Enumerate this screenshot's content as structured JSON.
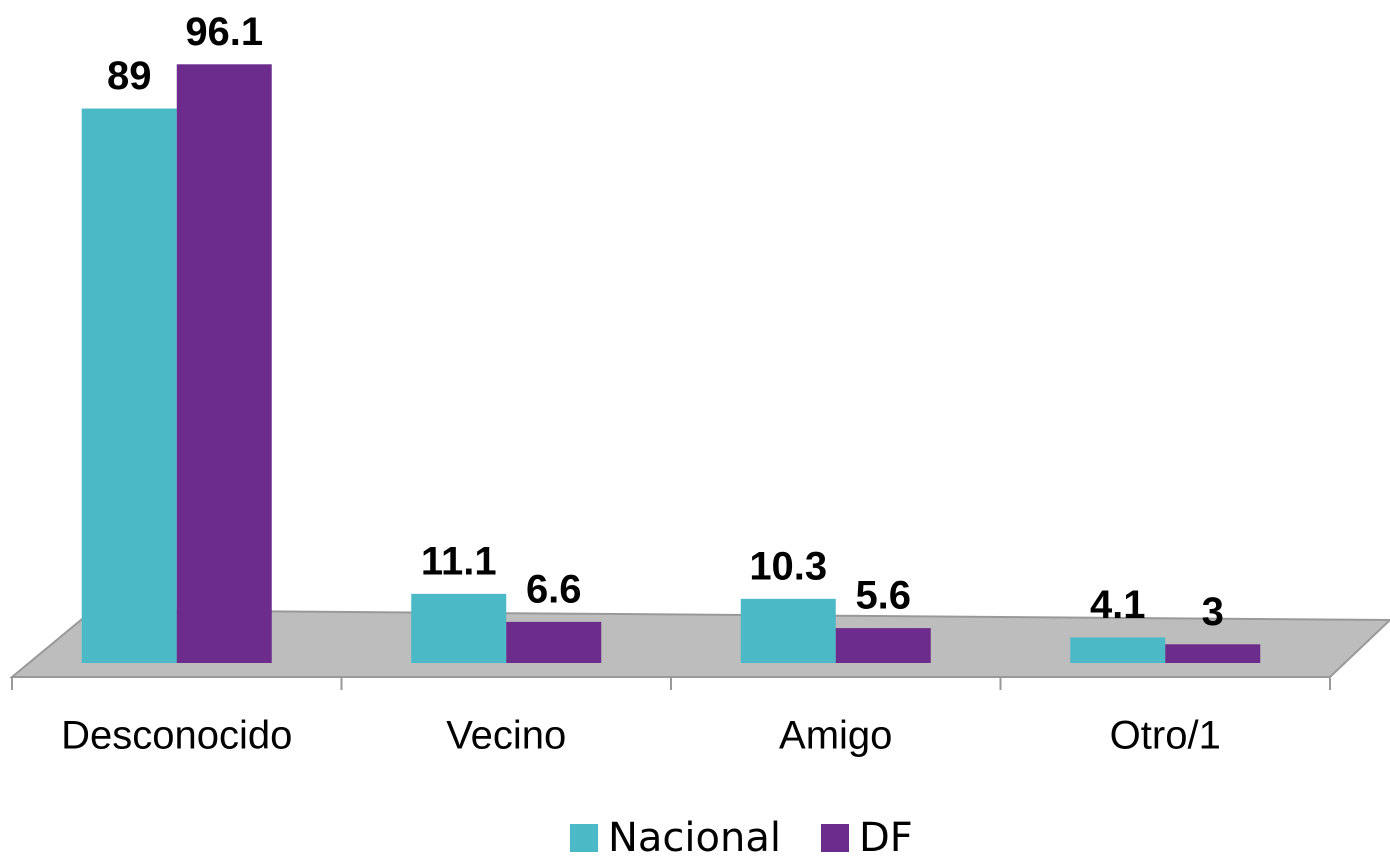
{
  "chart_data": {
    "type": "bar",
    "categories": [
      "Desconocido",
      "Vecino",
      "Amigo",
      "Otro/1"
    ],
    "series": [
      {
        "name": "Nacional",
        "color": "#4bbac6",
        "values": [
          89,
          11.1,
          10.3,
          4.1
        ]
      },
      {
        "name": "DF",
        "color": "#6b2c8b",
        "values": [
          96.1,
          6.6,
          5.6,
          3
        ]
      }
    ],
    "ylim": [
      0,
      100
    ],
    "legend": "bottom"
  }
}
